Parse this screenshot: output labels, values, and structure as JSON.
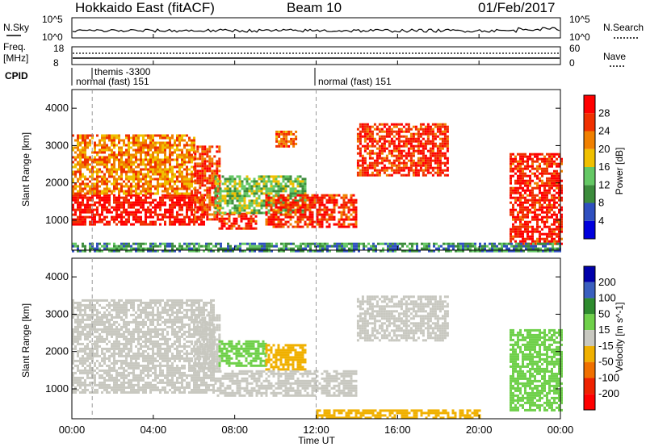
{
  "header": {
    "station": "Hokkaido East (fitACF)",
    "beam": "Beam 10",
    "date": "01/Feb/2017"
  },
  "noise_panel": {
    "left_label": "N.Sky",
    "right_label": "N.Search",
    "left_ticks": [
      "10^5",
      "10^0"
    ],
    "right_ticks": [
      "10^5",
      "10^0"
    ]
  },
  "freq_panel": {
    "left_label_1": "Freq.",
    "left_label_2": "[MHz]",
    "left_ticks": [
      "18",
      "8"
    ],
    "right_label": "Nave",
    "right_ticks": [
      "60",
      "0"
    ]
  },
  "cpid_panel": {
    "label": "CPID",
    "entries": [
      {
        "text": "themis -3300",
        "start_hour": 1.0
      },
      {
        "text": "normal (fast) 151",
        "start_hour": 0.0
      },
      {
        "text": "normal (fast) 151",
        "start_hour": 12.0
      }
    ]
  },
  "x_axis": {
    "label": "Time UT",
    "ticks": [
      "00:00",
      "04:00",
      "08:00",
      "12:00",
      "16:00",
      "20:00",
      "00:00"
    ]
  },
  "colors": {
    "power": [
      "#0000dd",
      "#2f4fbf",
      "#3c8c3c",
      "#64c864",
      "#f0c000",
      "#f08000",
      "#f03000",
      "#ff0000"
    ],
    "velocity": [
      "#0000aa",
      "#3a5fbf",
      "#2e8b2e",
      "#6fd04a",
      "#c8c8c0",
      "#f0b000",
      "#f07000",
      "#ee2200",
      "#ff0000"
    ]
  },
  "chart_data": [
    {
      "type": "heatmap",
      "name": "power",
      "ylabel": "Slant Range [km]",
      "xlabel": "",
      "xlim_hours": [
        0,
        24
      ],
      "ylim": [
        200,
        4500
      ],
      "yticks": [
        "1000",
        "2000",
        "3000",
        "4000"
      ],
      "colorbar": {
        "label": "Power [dB]",
        "ticks": [
          "4",
          "8",
          "12",
          "16",
          "20",
          "24",
          "28"
        ]
      },
      "regions": [
        {
          "t0": 0.0,
          "t1": 6.5,
          "r0": 900,
          "r1": 1700,
          "v": 29
        },
        {
          "t0": 0.0,
          "t1": 6.0,
          "r0": 1700,
          "r1": 3300,
          "v": 22
        },
        {
          "t0": 6.0,
          "t1": 7.2,
          "r0": 1000,
          "r1": 3000,
          "v": 26
        },
        {
          "t0": 7.2,
          "t1": 9.0,
          "r0": 800,
          "r1": 1200,
          "v": 28
        },
        {
          "t0": 7.0,
          "t1": 11.5,
          "r0": 1200,
          "r1": 2200,
          "v": 14
        },
        {
          "t0": 9.5,
          "t1": 14.0,
          "r0": 800,
          "r1": 1700,
          "v": 27
        },
        {
          "t0": 10.0,
          "t1": 11.0,
          "r0": 3000,
          "r1": 3400,
          "v": 24
        },
        {
          "t0": 14.0,
          "t1": 18.5,
          "r0": 2200,
          "r1": 3600,
          "v": 27
        },
        {
          "t0": 21.5,
          "t1": 24.0,
          "r0": 400,
          "r1": 2800,
          "v": 28
        },
        {
          "t0": 0.0,
          "t1": 24.0,
          "r0": 200,
          "r1": 400,
          "v": 10
        }
      ]
    },
    {
      "type": "heatmap",
      "name": "velocity",
      "ylabel": "Slant Range [km]",
      "xlabel": "Time UT",
      "xlim_hours": [
        0,
        24
      ],
      "ylim": [
        200,
        4500
      ],
      "yticks": [
        "1000",
        "2000",
        "3000",
        "4000"
      ],
      "colorbar": {
        "label": "Velocity [m s^-1]",
        "ticks": [
          "200",
          "100",
          "50",
          "15",
          "-15",
          "-50",
          "-100",
          "-200"
        ]
      },
      "regions": [
        {
          "t0": 0.0,
          "t1": 7.0,
          "r0": 900,
          "r1": 3400,
          "v": 0
        },
        {
          "t0": 6.0,
          "t1": 7.2,
          "r0": 1500,
          "r1": 3000,
          "v": 0
        },
        {
          "t0": 7.2,
          "t1": 9.5,
          "r0": 1600,
          "r1": 2300,
          "v": 40
        },
        {
          "t0": 9.5,
          "t1": 11.5,
          "r0": 1500,
          "r1": 2200,
          "v": -40
        },
        {
          "t0": 7.0,
          "t1": 14.0,
          "r0": 800,
          "r1": 1500,
          "v": 0
        },
        {
          "t0": 14.0,
          "t1": 18.5,
          "r0": 2300,
          "r1": 3500,
          "v": 0
        },
        {
          "t0": 21.5,
          "t1": 24.0,
          "r0": 400,
          "r1": 2600,
          "v": 30
        },
        {
          "t0": 12.0,
          "t1": 20.0,
          "r0": 200,
          "r1": 450,
          "v": -30
        }
      ]
    }
  ]
}
